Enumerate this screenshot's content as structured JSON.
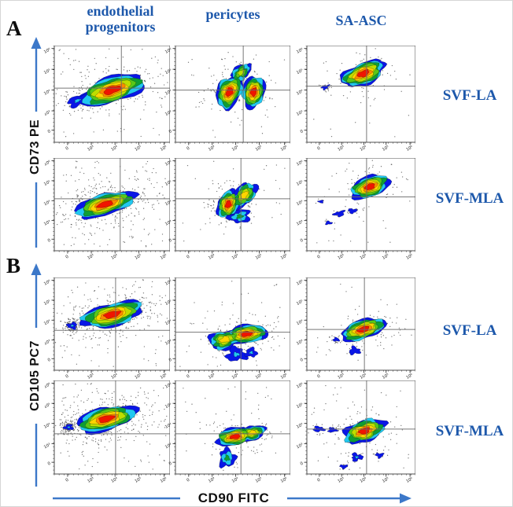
{
  "colors": {
    "label_blue": "#1d58ab",
    "arrow_blue": "#3c78c9",
    "gate_gray": "#6a6a6a",
    "dot_gray": "#3b3b3b"
  },
  "chart_data": {
    "type": "flow_cytometry_contour_grid",
    "description": "Contour density plots of SVF cell subsets",
    "columns": [
      "endothelial progenitors",
      "pericytes",
      "SA-ASC"
    ],
    "x_label": "CD90 FITC",
    "tick_labels": {
      "x": [
        "0",
        "10³",
        "10⁴",
        "10⁵",
        "10⁶"
      ],
      "y": [
        "10⁶",
        "10⁵",
        "10⁴",
        "10³",
        "0"
      ]
    },
    "tick_fracs": {
      "x": [
        0.115,
        0.32,
        0.525,
        0.73,
        0.95
      ],
      "y": [
        0.03,
        0.245,
        0.46,
        0.675,
        0.875
      ]
    },
    "contour_colors": [
      "#0a16e6",
      "#22c8f0",
      "#0e9e35",
      "#59c818",
      "#bedd00",
      "#ffd400",
      "#ff8a00",
      "#f01400"
    ],
    "panels": [
      {
        "label": "A",
        "y_label": "CD73 PE",
        "rows": [
          {
            "sample": "SVF-LA",
            "plots": [
              {
                "population": "endothelial progenitors",
                "gate": {
                  "x": 0.58,
                  "y": 0.44
                },
                "dots": 300,
                "seed": 11,
                "clusters": [
                  {
                    "cx": 0.5,
                    "cy": 0.46,
                    "rx": 0.295,
                    "ry": 0.135,
                    "rot": -18,
                    "levels": 8
                  },
                  {
                    "cx": 0.2,
                    "cy": 0.57,
                    "rx": 0.09,
                    "ry": 0.05,
                    "rot": -25,
                    "levels": 2,
                    "wob": 0.25
                  }
                ]
              },
              {
                "population": "pericytes",
                "gate": {
                  "x": 0.59,
                  "y": 0.46
                },
                "dots": 150,
                "seed": 22,
                "clusters": [
                  {
                    "cx": 0.47,
                    "cy": 0.48,
                    "rx": 0.155,
                    "ry": 0.125,
                    "rot": -62,
                    "levels": 8
                  },
                  {
                    "cx": 0.68,
                    "cy": 0.48,
                    "rx": 0.14,
                    "ry": 0.115,
                    "rot": -78,
                    "levels": 8
                  },
                  {
                    "cx": 0.57,
                    "cy": 0.28,
                    "rx": 0.1,
                    "ry": 0.075,
                    "rot": -40,
                    "levels": 5,
                    "wob": 0.2
                  }
                ]
              },
              {
                "population": "SA-ASC",
                "gate": {
                  "x": 0.55,
                  "y": 0.42
                },
                "dots": 110,
                "seed": 33,
                "clusters": [
                  {
                    "cx": 0.52,
                    "cy": 0.29,
                    "rx": 0.215,
                    "ry": 0.115,
                    "rot": -22,
                    "levels": 8
                  },
                  {
                    "cx": 0.17,
                    "cy": 0.43,
                    "rx": 0.035,
                    "ry": 0.02,
                    "rot": -20,
                    "levels": 1,
                    "wob": 0.3
                  }
                ]
              }
            ]
          },
          {
            "sample": "SVF-MLA",
            "plots": [
              {
                "population": "endothelial progenitors",
                "gate": {
                  "x": 0.57,
                  "y": 0.44
                },
                "dots": 420,
                "seed": 44,
                "clusters": [
                  {
                    "cx": 0.44,
                    "cy": 0.5,
                    "rx": 0.27,
                    "ry": 0.115,
                    "rot": -16,
                    "levels": 8
                  }
                ]
              },
              {
                "population": "pericytes",
                "gate": {
                  "x": 0.57,
                  "y": 0.44
                },
                "dots": 140,
                "seed": 55,
                "clusters": [
                  {
                    "cx": 0.46,
                    "cy": 0.5,
                    "rx": 0.125,
                    "ry": 0.115,
                    "rot": -68,
                    "levels": 8
                  },
                  {
                    "cx": 0.6,
                    "cy": 0.4,
                    "rx": 0.13,
                    "ry": 0.1,
                    "rot": -48,
                    "levels": 6,
                    "wob": 0.18
                  },
                  {
                    "cx": 0.56,
                    "cy": 0.63,
                    "rx": 0.095,
                    "ry": 0.07,
                    "rot": -10,
                    "levels": 3,
                    "wob": 0.22
                  }
                ]
              },
              {
                "population": "SA-ASC",
                "gate": {
                  "x": 0.55,
                  "y": 0.42
                },
                "dots": 120,
                "seed": 66,
                "clusters": [
                  {
                    "cx": 0.58,
                    "cy": 0.31,
                    "rx": 0.185,
                    "ry": 0.115,
                    "rot": -20,
                    "levels": 8
                  },
                  {
                    "cx": 0.3,
                    "cy": 0.6,
                    "rx": 0.05,
                    "ry": 0.028,
                    "rot": -10,
                    "levels": 1,
                    "wob": 0.3
                  },
                  {
                    "cx": 0.42,
                    "cy": 0.57,
                    "rx": 0.04,
                    "ry": 0.025,
                    "rot": 0,
                    "levels": 1,
                    "wob": 0.3
                  },
                  {
                    "cx": 0.2,
                    "cy": 0.7,
                    "rx": 0.03,
                    "ry": 0.018,
                    "rot": 0,
                    "levels": 1,
                    "wob": 0.3
                  },
                  {
                    "cx": 0.13,
                    "cy": 0.47,
                    "rx": 0.025,
                    "ry": 0.015,
                    "rot": 0,
                    "levels": 1,
                    "wob": 0.3
                  }
                ]
              }
            ]
          }
        ]
      },
      {
        "label": "B",
        "y_label": "CD105 PC7",
        "rows": [
          {
            "sample": "SVF-LA",
            "plots": [
              {
                "population": "endothelial progenitors",
                "gate": {
                  "x": 0.53,
                  "y": 0.57
                },
                "dots": 480,
                "seed": 77,
                "clusters": [
                  {
                    "cx": 0.5,
                    "cy": 0.4,
                    "rx": 0.275,
                    "ry": 0.125,
                    "rot": -14,
                    "levels": 8
                  },
                  {
                    "cx": 0.155,
                    "cy": 0.52,
                    "rx": 0.042,
                    "ry": 0.035,
                    "rot": 0,
                    "levels": 2,
                    "wob": 0.25
                  }
                ]
              },
              {
                "population": "pericytes",
                "gate": {
                  "x": 0.57,
                  "y": 0.59
                },
                "dots": 170,
                "seed": 88,
                "clusters": [
                  {
                    "cx": 0.62,
                    "cy": 0.61,
                    "rx": 0.185,
                    "ry": 0.1,
                    "rot": -8,
                    "levels": 8
                  },
                  {
                    "cx": 0.43,
                    "cy": 0.67,
                    "rx": 0.145,
                    "ry": 0.1,
                    "rot": -14,
                    "levels": 6,
                    "wob": 0.18
                  },
                  {
                    "cx": 0.53,
                    "cy": 0.83,
                    "rx": 0.085,
                    "ry": 0.075,
                    "rot": 0,
                    "levels": 2,
                    "wob": 0.25
                  },
                  {
                    "cx": 0.66,
                    "cy": 0.81,
                    "rx": 0.05,
                    "ry": 0.05,
                    "rot": 0,
                    "levels": 2,
                    "wob": 0.25
                  }
                ]
              },
              {
                "population": "SA-ASC",
                "gate": {
                  "x": 0.53,
                  "y": 0.56
                },
                "dots": 130,
                "seed": 99,
                "clusters": [
                  {
                    "cx": 0.52,
                    "cy": 0.56,
                    "rx": 0.215,
                    "ry": 0.105,
                    "rot": -18,
                    "levels": 8
                  },
                  {
                    "cx": 0.44,
                    "cy": 0.79,
                    "rx": 0.05,
                    "ry": 0.04,
                    "rot": 0,
                    "levels": 1,
                    "wob": 0.3
                  },
                  {
                    "cx": 0.27,
                    "cy": 0.67,
                    "rx": 0.03,
                    "ry": 0.02,
                    "rot": 0,
                    "levels": 1,
                    "wob": 0.3
                  }
                ]
              }
            ]
          },
          {
            "sample": "SVF-MLA",
            "plots": [
              {
                "population": "endothelial progenitors",
                "gate": {
                  "x": 0.53,
                  "y": 0.57
                },
                "dots": 520,
                "seed": 111,
                "clusters": [
                  {
                    "cx": 0.45,
                    "cy": 0.41,
                    "rx": 0.265,
                    "ry": 0.125,
                    "rot": -14,
                    "levels": 8
                  },
                  {
                    "cx": 0.125,
                    "cy": 0.5,
                    "rx": 0.04,
                    "ry": 0.03,
                    "rot": 0,
                    "levels": 2,
                    "wob": 0.25
                  }
                ]
              },
              {
                "population": "pericytes",
                "gate": {
                  "x": 0.57,
                  "y": 0.57
                },
                "dots": 150,
                "seed": 122,
                "clusters": [
                  {
                    "cx": 0.52,
                    "cy": 0.6,
                    "rx": 0.17,
                    "ry": 0.095,
                    "rot": -10,
                    "levels": 8
                  },
                  {
                    "cx": 0.67,
                    "cy": 0.56,
                    "rx": 0.115,
                    "ry": 0.08,
                    "rot": -12,
                    "levels": 6,
                    "wob": 0.18
                  },
                  {
                    "cx": 0.45,
                    "cy": 0.83,
                    "rx": 0.07,
                    "ry": 0.1,
                    "rot": 4,
                    "levels": 3,
                    "wob": 0.22
                  }
                ]
              },
              {
                "population": "SA-ASC",
                "gate": {
                  "x": 0.55,
                  "y": 0.52
                },
                "dots": 160,
                "seed": 133,
                "clusters": [
                  {
                    "cx": 0.53,
                    "cy": 0.54,
                    "rx": 0.195,
                    "ry": 0.115,
                    "rot": -18,
                    "levels": 8,
                    "wob": 0.16
                  },
                  {
                    "cx": 0.11,
                    "cy": 0.52,
                    "rx": 0.05,
                    "ry": 0.028,
                    "rot": 0,
                    "levels": 1,
                    "wob": 0.3
                  },
                  {
                    "cx": 0.235,
                    "cy": 0.53,
                    "rx": 0.04,
                    "ry": 0.025,
                    "rot": 0,
                    "levels": 1,
                    "wob": 0.3
                  },
                  {
                    "cx": 0.46,
                    "cy": 0.82,
                    "rx": 0.05,
                    "ry": 0.04,
                    "rot": 0,
                    "levels": 2,
                    "wob": 0.3
                  },
                  {
                    "cx": 0.34,
                    "cy": 0.92,
                    "rx": 0.035,
                    "ry": 0.02,
                    "rot": 0,
                    "levels": 1,
                    "wob": 0.3
                  },
                  {
                    "cx": 0.67,
                    "cy": 0.8,
                    "rx": 0.035,
                    "ry": 0.025,
                    "rot": 0,
                    "levels": 1,
                    "wob": 0.3
                  }
                ]
              }
            ]
          }
        ]
      }
    ]
  }
}
